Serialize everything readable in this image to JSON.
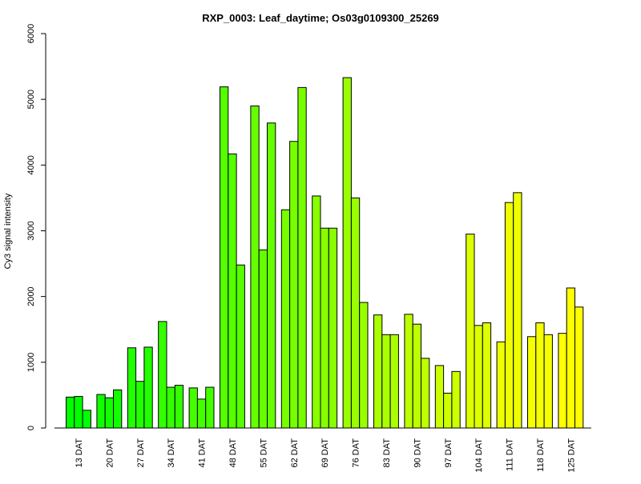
{
  "chart_data": {
    "type": "bar",
    "title": "RXP_0003: Leaf_daytime; Os03g0109300_25269",
    "xlabel": "",
    "ylabel": "Cy3 signal intensity",
    "ylim": [
      0,
      6000
    ],
    "yticks": [
      0,
      1000,
      2000,
      3000,
      4000,
      5000,
      6000
    ],
    "grid": false,
    "legend": "none",
    "categories": [
      "13 DAT",
      "20 DAT",
      "27 DAT",
      "34 DAT",
      "41 DAT",
      "48 DAT",
      "55 DAT",
      "62 DAT",
      "69 DAT",
      "76 DAT",
      "83 DAT",
      "90 DAT",
      "97 DAT",
      "104 DAT",
      "111 DAT",
      "118 DAT",
      "125 DAT"
    ],
    "values": [
      [
        470,
        480,
        270
      ],
      [
        510,
        460,
        580
      ],
      [
        1220,
        710,
        1230
      ],
      [
        1620,
        620,
        650
      ],
      [
        610,
        440,
        620
      ],
      [
        5190,
        4170,
        2480
      ],
      [
        4900,
        2710,
        4640
      ],
      [
        3320,
        4360,
        5180
      ],
      [
        3530,
        3040,
        3040
      ],
      [
        5330,
        3500,
        1910
      ],
      [
        1720,
        1420,
        1420
      ],
      [
        1730,
        1580,
        1060
      ],
      [
        950,
        530,
        860
      ],
      [
        2950,
        1560,
        1600
      ],
      [
        1310,
        3430,
        3580
      ],
      [
        1390,
        1600,
        1420
      ],
      [
        1440,
        2130,
        1840
      ]
    ],
    "colors": [
      "#00ff00",
      "#11ff00",
      "#22ff00",
      "#33ff00",
      "#44ff00",
      "#55ff00",
      "#66ff00",
      "#77ff00",
      "#88ff00",
      "#99ff00",
      "#aaff00",
      "#bbff00",
      "#ccff00",
      "#ddff00",
      "#eeff00",
      "#f6ff00",
      "#ffff00"
    ]
  }
}
